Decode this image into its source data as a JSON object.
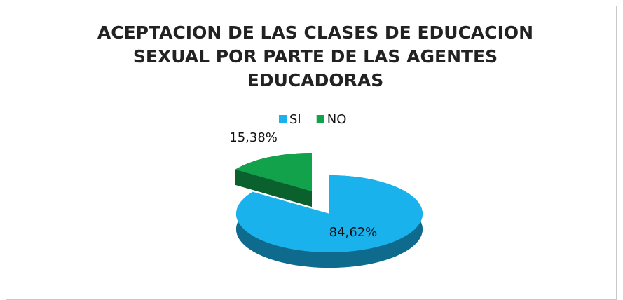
{
  "chart_data": {
    "type": "pie",
    "title": "ACEPTACION DE LAS CLASES DE EDUCACION SEXUAL POR PARTE DE LAS AGENTES EDUCADORAS",
    "categories": [
      "SI",
      "NO"
    ],
    "values": [
      84.62,
      15.38
    ],
    "value_labels": [
      "84,62%",
      "15,38%"
    ],
    "colors": [
      "#19b2ec",
      "#13a24c"
    ],
    "legend": "top"
  }
}
